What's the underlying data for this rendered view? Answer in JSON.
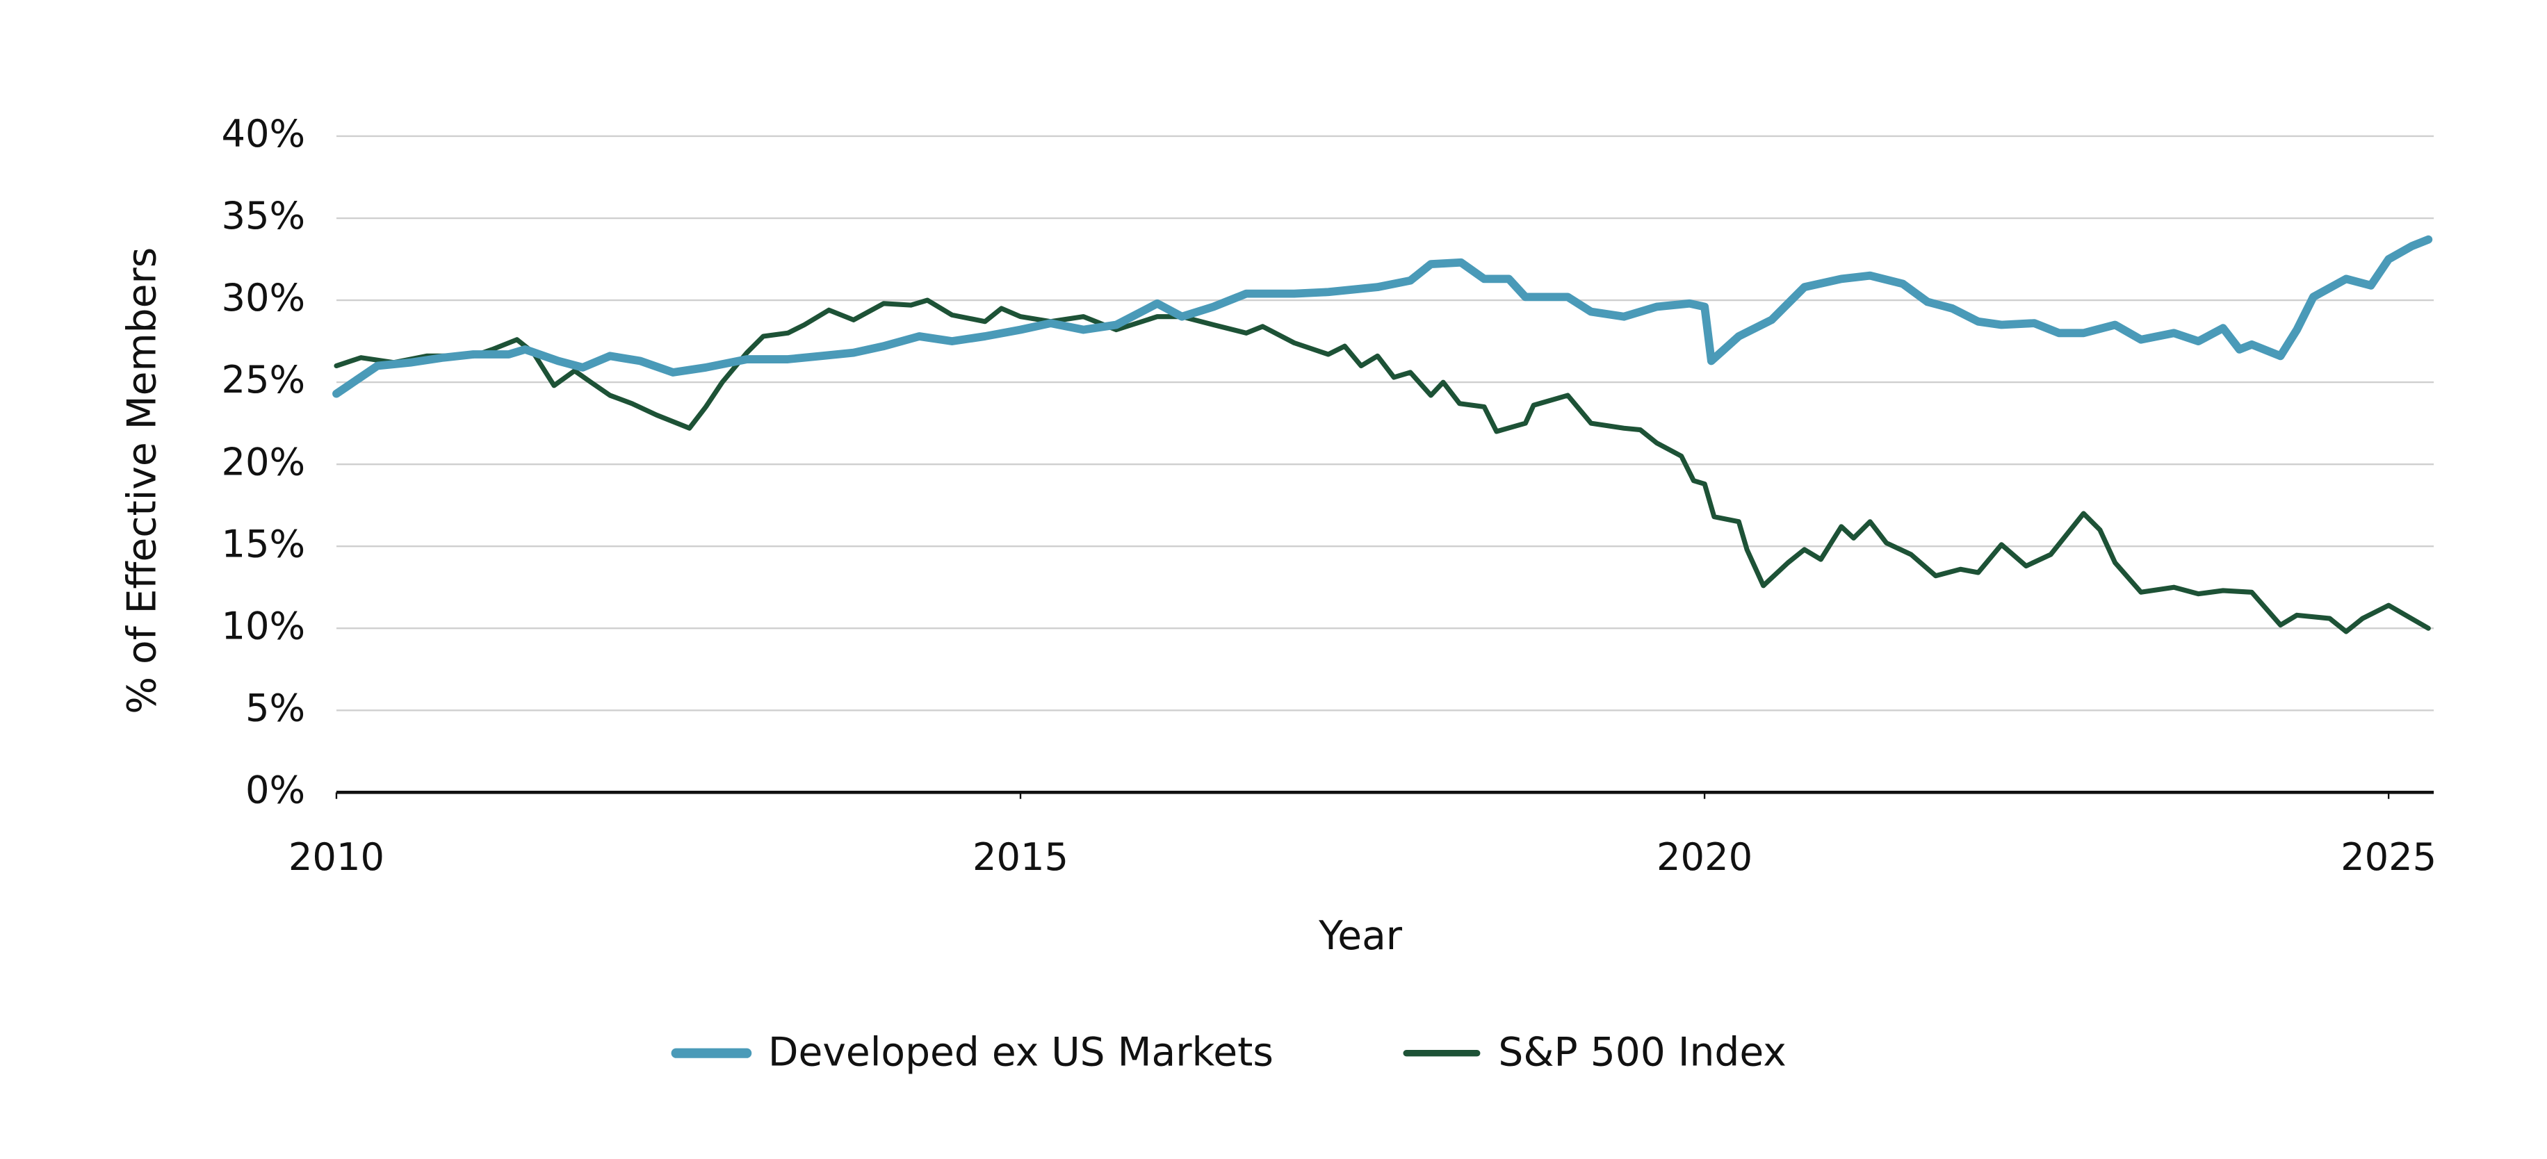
{
  "chart_data": {
    "type": "line",
    "xlabel": "Year",
    "ylabel": "% of Effective Members",
    "xlim": [
      2010,
      2025.33
    ],
    "xticks": [
      2010,
      2015,
      2020,
      2025
    ],
    "ylim": [
      0,
      40
    ],
    "yticks": [
      {
        "value": 0,
        "label": "0%"
      },
      {
        "value": 5,
        "label": "5%"
      },
      {
        "value": 10,
        "label": "10%"
      },
      {
        "value": 15,
        "label": "15%"
      },
      {
        "value": 20,
        "label": "20%"
      },
      {
        "value": 25,
        "label": "25%"
      },
      {
        "value": 30,
        "label": "30%"
      },
      {
        "value": 35,
        "label": "35%"
      },
      {
        "value": 40,
        "label": "40%"
      }
    ],
    "grid": true,
    "legend": "bottom",
    "series": [
      {
        "name": "Developed ex US Markets",
        "color": "#4a9ab8",
        "x": [
          2010.0,
          2010.3,
          2010.54,
          2010.78,
          2011.0,
          2011.26,
          2011.38,
          2011.62,
          2011.8,
          2012.0,
          2012.22,
          2012.46,
          2012.7,
          2013.0,
          2013.3,
          2013.54,
          2013.78,
          2014.0,
          2014.26,
          2014.5,
          2014.74,
          2015.0,
          2015.22,
          2015.46,
          2015.7,
          2016.0,
          2016.18,
          2016.41,
          2016.65,
          2017.0,
          2017.25,
          2017.61,
          2017.85,
          2018.0,
          2018.22,
          2018.39,
          2018.57,
          2018.69,
          2019.0,
          2019.17,
          2019.41,
          2019.65,
          2019.89,
          2020.0,
          2020.05,
          2020.25,
          2020.49,
          2020.73,
          2021.0,
          2021.21,
          2021.45,
          2021.63,
          2021.81,
          2022.0,
          2022.17,
          2022.41,
          2022.59,
          2022.77,
          2023.0,
          2023.19,
          2023.43,
          2023.61,
          2023.79,
          2023.91,
          2024.0,
          2024.21,
          2024.33,
          2024.45,
          2024.69,
          2024.87,
          2025.0,
          2025.17,
          2025.29
        ],
        "values": [
          24.3,
          26.0,
          26.2,
          26.5,
          26.7,
          26.7,
          27.0,
          26.3,
          25.9,
          26.6,
          26.3,
          25.6,
          25.9,
          26.4,
          26.4,
          26.6,
          26.8,
          27.2,
          27.8,
          27.5,
          27.8,
          28.2,
          28.6,
          28.2,
          28.5,
          29.8,
          29.0,
          29.6,
          30.4,
          30.4,
          30.5,
          30.8,
          31.2,
          32.2,
          32.3,
          31.3,
          31.3,
          30.2,
          30.2,
          29.3,
          29.0,
          29.6,
          29.8,
          29.6,
          26.3,
          27.8,
          28.8,
          30.8,
          31.3,
          31.5,
          31.0,
          29.9,
          29.5,
          28.7,
          28.5,
          28.6,
          28.0,
          28.0,
          28.5,
          27.6,
          28.0,
          27.5,
          28.3,
          27.0,
          27.3,
          26.6,
          28.2,
          30.2,
          31.3,
          30.9,
          32.5,
          33.3,
          33.7
        ]
      },
      {
        "name": "S&P 500 Index",
        "color": "#1d5236",
        "x": [
          2010.0,
          2010.18,
          2010.42,
          2010.66,
          2011.0,
          2011.14,
          2011.32,
          2011.44,
          2011.59,
          2011.74,
          2011.86,
          2012.0,
          2012.16,
          2012.34,
          2012.58,
          2012.7,
          2012.82,
          2013.0,
          2013.12,
          2013.3,
          2013.42,
          2013.6,
          2013.78,
          2014.0,
          2014.2,
          2014.32,
          2014.5,
          2014.74,
          2014.86,
          2015.0,
          2015.22,
          2015.46,
          2015.7,
          2016.0,
          2016.18,
          2016.41,
          2016.65,
          2016.77,
          2017.0,
          2017.25,
          2017.37,
          2017.49,
          2017.61,
          2017.73,
          2017.85,
          2018.0,
          2018.09,
          2018.21,
          2018.39,
          2018.48,
          2018.69,
          2018.75,
          2019.0,
          2019.17,
          2019.41,
          2019.53,
          2019.65,
          2019.83,
          2019.92,
          2020.0,
          2020.07,
          2020.25,
          2020.31,
          2020.43,
          2020.61,
          2020.73,
          2020.85,
          2021.0,
          2021.09,
          2021.21,
          2021.33,
          2021.51,
          2021.69,
          2021.87,
          2022.0,
          2022.17,
          2022.35,
          2022.53,
          2022.77,
          2022.89,
          2023.0,
          2023.19,
          2023.43,
          2023.61,
          2023.79,
          2024.0,
          2024.21,
          2024.33,
          2024.57,
          2024.69,
          2024.81,
          2025.0,
          2025.29
        ],
        "values": [
          26.0,
          26.5,
          26.2,
          26.6,
          26.6,
          27.0,
          27.6,
          26.8,
          24.8,
          25.7,
          25.0,
          24.2,
          23.7,
          23.0,
          22.2,
          23.5,
          25.0,
          26.8,
          27.8,
          28.0,
          28.5,
          29.4,
          28.8,
          29.8,
          29.7,
          30.0,
          29.1,
          28.7,
          29.5,
          29.0,
          28.7,
          29.0,
          28.2,
          29.0,
          29.0,
          28.5,
          28.0,
          28.4,
          27.4,
          26.7,
          27.2,
          26.0,
          26.6,
          25.3,
          25.6,
          24.2,
          25.0,
          23.7,
          23.5,
          22.0,
          22.5,
          23.6,
          24.2,
          22.5,
          22.2,
          22.1,
          21.3,
          20.5,
          19.0,
          18.8,
          16.8,
          16.5,
          14.8,
          12.6,
          14.0,
          14.8,
          14.2,
          16.2,
          15.5,
          16.5,
          15.2,
          14.5,
          13.2,
          13.6,
          13.4,
          15.1,
          13.8,
          14.5,
          17.0,
          16.0,
          14.0,
          12.2,
          12.5,
          12.1,
          12.3,
          12.2,
          10.2,
          10.8,
          10.6,
          9.8,
          10.6,
          11.4,
          10.0
        ]
      }
    ]
  }
}
